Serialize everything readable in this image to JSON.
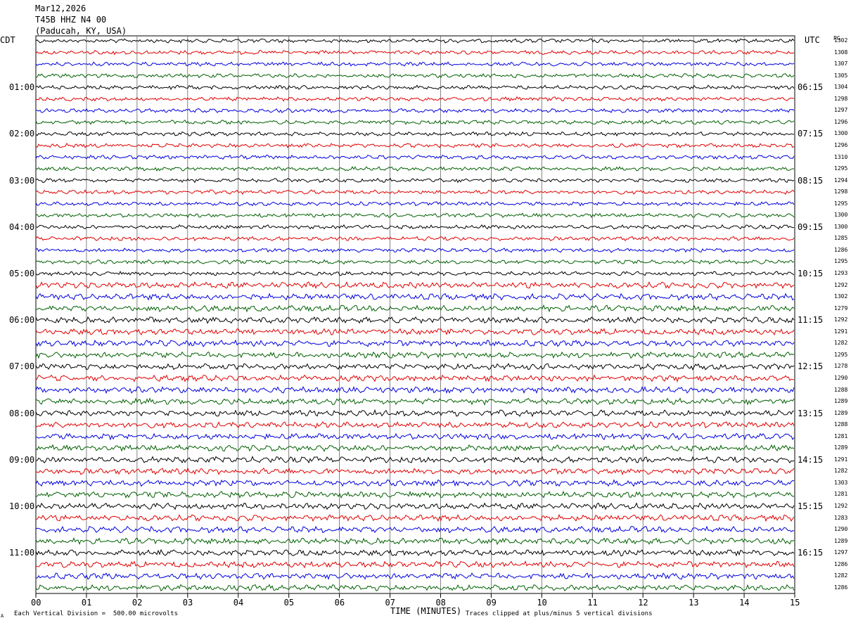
{
  "header": {
    "date": "Mar12,2026",
    "station": "T45B HHZ N4 00",
    "location": "(Paducah, KY, USA)"
  },
  "left_tz": "CDT",
  "right_tz": "UTC",
  "right_col_header": "PG",
  "footer": {
    "scale_note": "Each Vertical Division =  500.00 microvolts",
    "clip_note": "Traces clipped at plus/minus 5 vertical divisions",
    "corner_mark": "A"
  },
  "chart_data": {
    "type": "line",
    "xlabel": "TIME (MINUTES)",
    "x_ticks": [
      "00",
      "01",
      "02",
      "03",
      "04",
      "05",
      "06",
      "07",
      "08",
      "09",
      "10",
      "11",
      "12",
      "13",
      "14",
      "15"
    ],
    "xlim": [
      0,
      15
    ],
    "trace_colors": [
      "#000000",
      "#e00000",
      "#0000dd",
      "#006000"
    ],
    "left_hour_labels": [
      "01:00",
      "02:00",
      "03:00",
      "04:00",
      "05:00",
      "06:00",
      "07:00",
      "08:00",
      "09:00",
      "10:00",
      "11:00"
    ],
    "right_hour_labels": [
      "06:15",
      "07:15",
      "08:15",
      "09:15",
      "10:15",
      "11:15",
      "12:15",
      "13:15",
      "14:15",
      "15:15",
      "16:15"
    ],
    "trace_values": [
      1302,
      1308,
      1307,
      1305,
      1304,
      1298,
      1297,
      1296,
      1300,
      1296,
      1310,
      1295,
      1294,
      1298,
      1295,
      1300,
      1300,
      1285,
      1286,
      1295,
      1293,
      1292,
      1302,
      1279,
      1292,
      1291,
      1282,
      1295,
      1278,
      1290,
      1288,
      1289,
      1289,
      1288,
      1281,
      1289,
      1291,
      1282,
      1303,
      1281,
      1292,
      1283,
      1290,
      1289,
      1297,
      1286,
      1282,
      1286
    ],
    "trace_amplitude": [
      2,
      2,
      2,
      2,
      2,
      2,
      2,
      2,
      2,
      2,
      2,
      2,
      2,
      2,
      2,
      2,
      2,
      2,
      2,
      2,
      2,
      3,
      3,
      3,
      3,
      3,
      3,
      3,
      3,
      3,
      3,
      3,
      3,
      3,
      3,
      3,
      3,
      3,
      3,
      3,
      3,
      3,
      3,
      3,
      3,
      3,
      3,
      3
    ],
    "grid": true
  }
}
